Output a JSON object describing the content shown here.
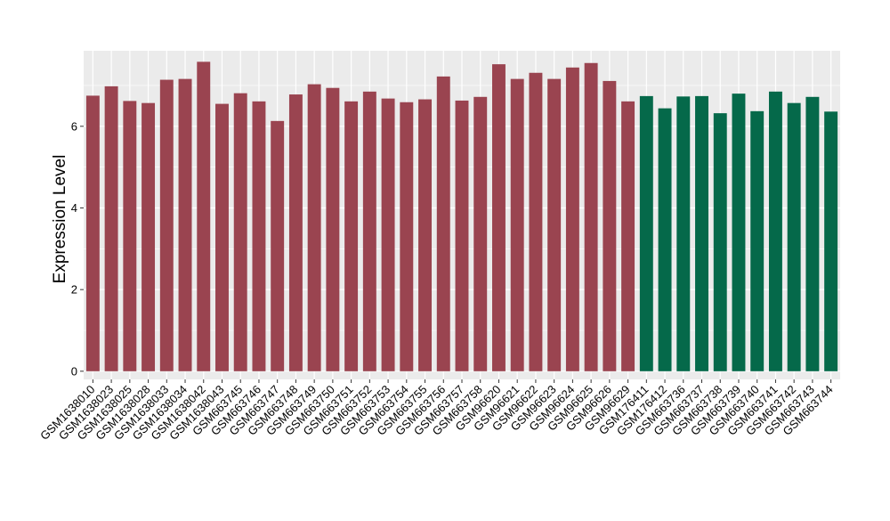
{
  "chart_data": {
    "type": "bar",
    "title": "",
    "xlabel": "",
    "ylabel": "Expression Level",
    "ylim": [
      -0.2,
      7.85
    ],
    "yticks": [
      0,
      2,
      4,
      6
    ],
    "grid": true,
    "legend": "none",
    "colors": {
      "panel_background": "#EBEBEB",
      "grid_major": "#FFFFFF",
      "group_1": "#9A4450",
      "group_2": "#05694A"
    },
    "categories": [
      "GSM1638010",
      "GSM1638023",
      "GSM1638025",
      "GSM1638028",
      "GSM1638033",
      "GSM1638034",
      "GSM1638042",
      "GSM1638043",
      "GSM663745",
      "GSM663746",
      "GSM663747",
      "GSM663748",
      "GSM663749",
      "GSM663750",
      "GSM663751",
      "GSM663752",
      "GSM663753",
      "GSM663754",
      "GSM663755",
      "GSM663756",
      "GSM663757",
      "GSM663758",
      "GSM96620",
      "GSM96621",
      "GSM96622",
      "GSM96623",
      "GSM96624",
      "GSM96625",
      "GSM96626",
      "GSM96629",
      "GSM176411",
      "GSM176412",
      "GSM663736",
      "GSM663737",
      "GSM663738",
      "GSM663739",
      "GSM663740",
      "GSM663741",
      "GSM663742",
      "GSM663743",
      "GSM663744"
    ],
    "values": [
      6.75,
      6.98,
      6.62,
      6.57,
      7.14,
      7.16,
      7.58,
      6.55,
      6.81,
      6.61,
      6.13,
      6.78,
      7.03,
      6.94,
      6.61,
      6.85,
      6.68,
      6.59,
      6.66,
      7.22,
      6.63,
      6.72,
      7.52,
      7.16,
      7.31,
      7.16,
      7.44,
      7.55,
      7.11,
      6.61,
      6.74,
      6.44,
      6.73,
      6.74,
      6.32,
      6.8,
      6.37,
      6.85,
      6.57,
      6.72,
      6.36
    ],
    "groups": [
      1,
      1,
      1,
      1,
      1,
      1,
      1,
      1,
      1,
      1,
      1,
      1,
      1,
      1,
      1,
      1,
      1,
      1,
      1,
      1,
      1,
      1,
      1,
      1,
      1,
      1,
      1,
      1,
      1,
      1,
      2,
      2,
      2,
      2,
      2,
      2,
      2,
      2,
      2,
      2,
      2
    ]
  }
}
